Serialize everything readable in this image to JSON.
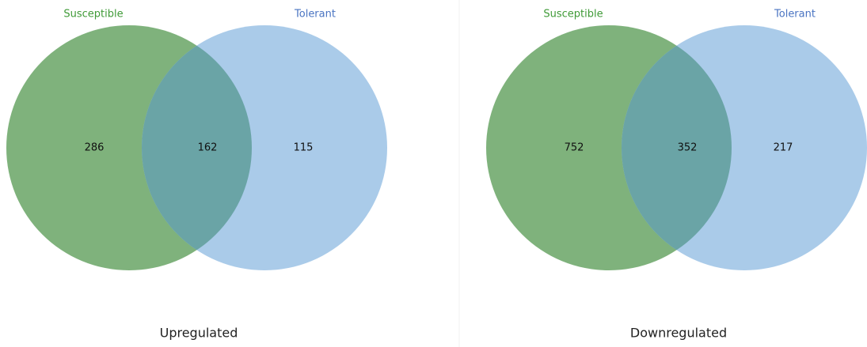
{
  "chart_data": [
    {
      "type": "venn",
      "title": "Upregulated",
      "sets": [
        {
          "name": "Susceptible",
          "color": "#7fb27c"
        },
        {
          "name": "Tolerant",
          "color": "#aacbe9"
        }
      ],
      "overlap_color": "#6aa4a6",
      "values": [
        286,
        162,
        115
      ]
    },
    {
      "type": "venn",
      "title": "Downregulated",
      "sets": [
        {
          "name": "Susceptible",
          "color": "#7fb27c"
        },
        {
          "name": "Tolerant",
          "color": "#aacbe9"
        }
      ],
      "overlap_color": "#6aa4a6",
      "values": [
        752,
        352,
        217
      ]
    }
  ]
}
